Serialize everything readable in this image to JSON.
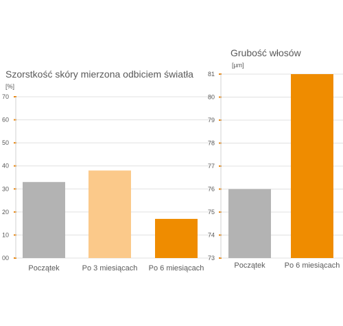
{
  "chart_data": [
    {
      "type": "bar",
      "title": "Szorstkość skóry mierzona odbiciem światła",
      "unit_label": "[%]",
      "categories": [
        "Początek",
        "Po 3 miesiącach",
        "Po 6 miesiącach"
      ],
      "values": [
        33,
        38,
        17
      ],
      "bar_colors": [
        "#b3b3b3",
        "#fbc98a",
        "#ef8c00"
      ],
      "ylim": [
        0,
        70
      ],
      "yticks": [
        0,
        10,
        20,
        30,
        40,
        50,
        60,
        70
      ],
      "ytick_labels": [
        "00",
        "10",
        "20",
        "30",
        "40",
        "50",
        "60",
        "70"
      ],
      "grid": true
    },
    {
      "type": "bar",
      "title": "Grubość włosów",
      "unit_label": "[µm]",
      "categories": [
        "Początek",
        "Po 6 miesiącach"
      ],
      "values": [
        76,
        81
      ],
      "bar_colors": [
        "#b3b3b3",
        "#ef8c00"
      ],
      "ylim": [
        73,
        81
      ],
      "yticks": [
        73,
        74,
        75,
        76,
        77,
        78,
        79,
        80,
        81
      ],
      "ytick_labels": [
        "73",
        "74",
        "75",
        "76",
        "77",
        "78",
        "79",
        "80",
        "81"
      ],
      "grid": true
    }
  ],
  "colors": {
    "accent": "#ef8c00",
    "gridline": "#e0e0e0",
    "text": "#595959"
  }
}
